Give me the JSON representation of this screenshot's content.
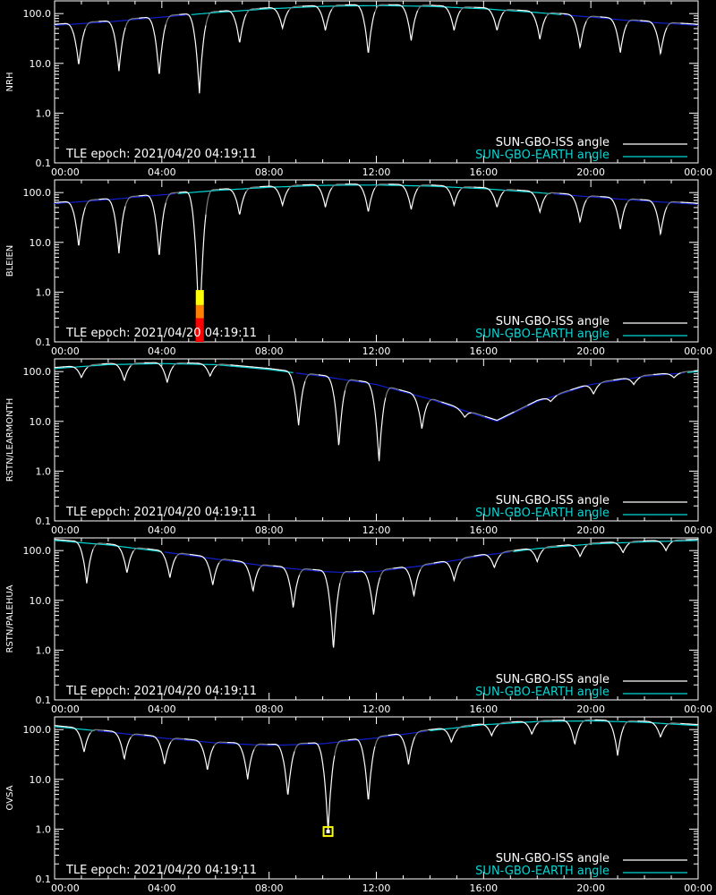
{
  "colors": {
    "background": "#000000",
    "axis": "#ffffff",
    "iss_sunlit": "#ffffff",
    "iss_shadow": "#808080",
    "earth_above_horizon": "#00d8d8",
    "earth_below_horizon": "#1020d0",
    "marker_yellow": "#ffff00",
    "marker_orange": "#ff8000",
    "marker_red": "#ff0000"
  },
  "x_tick_labels": [
    "00:00",
    "04:00",
    "08:00",
    "12:00",
    "16:00",
    "20:00",
    "00:00"
  ],
  "y_tick_labels": [
    "100.0",
    "10.0",
    "1.0",
    "0.1"
  ],
  "legend": {
    "iss": "SUN-GBO-ISS angle",
    "earth": "SUN-GBO-EARTH angle"
  },
  "epoch_text": "TLE epoch: 2021/04/20 04:19:11",
  "chart_data": [
    {
      "type": "line",
      "station": "NRH",
      "ylabel": "NRH",
      "xlim": [
        0,
        24
      ],
      "ylim": [
        0.1,
        180
      ],
      "yscale": "log",
      "earth_angle": {
        "x": [
          0,
          2,
          4,
          6,
          8,
          10,
          12,
          14,
          16,
          18,
          20,
          22,
          24
        ],
        "y": [
          58,
          68,
          85,
          105,
          125,
          140,
          145,
          140,
          125,
          105,
          85,
          68,
          58
        ]
      },
      "iss_dips": {
        "time": [
          0.9,
          2.4,
          3.9,
          5.4,
          6.9,
          8.5,
          10.1,
          11.7,
          13.3,
          14.9,
          16.5,
          18.1,
          19.6,
          21.1,
          22.6
        ],
        "min": [
          9,
          7,
          5.5,
          2.5,
          25,
          50,
          45,
          15,
          28,
          45,
          45,
          30,
          20,
          16,
          15
        ]
      },
      "markers": []
    },
    {
      "type": "line",
      "station": "BLEIEN",
      "ylabel": "BLEIEN",
      "xlim": [
        0,
        24
      ],
      "ylim": [
        0.1,
        180
      ],
      "yscale": "log",
      "earth_angle": {
        "x": [
          0,
          2,
          4,
          6,
          8,
          10,
          12,
          14,
          16,
          18,
          20,
          22,
          24
        ],
        "y": [
          60,
          72,
          90,
          110,
          128,
          140,
          142,
          135,
          120,
          100,
          82,
          68,
          58
        ]
      },
      "iss_dips": {
        "time": [
          0.9,
          2.4,
          3.9,
          5.4,
          6.9,
          8.5,
          10.1,
          11.7,
          13.3,
          14.9,
          16.5,
          18.1,
          19.6,
          21.1,
          22.6
        ],
        "min": [
          8,
          6,
          5,
          0.1,
          35,
          55,
          50,
          40,
          45,
          55,
          50,
          40,
          25,
          18,
          14
        ]
      },
      "markers": [
        {
          "time": 5.4,
          "y_from": 0.1,
          "y_to": 0.2,
          "color": "marker_red"
        },
        {
          "time": 5.4,
          "y_from": 0.2,
          "y_to": 0.3,
          "color": "marker_red"
        },
        {
          "time": 5.4,
          "y_from": 0.3,
          "y_to": 0.55,
          "color": "marker_orange"
        },
        {
          "time": 5.4,
          "y_from": 0.55,
          "y_to": 1.1,
          "color": "marker_yellow"
        }
      ]
    },
    {
      "type": "line",
      "station": "RSTN/LEARMONTH",
      "ylabel": "RSTN/LEARMONTH",
      "xlim": [
        0,
        24
      ],
      "ylim": [
        0.1,
        180
      ],
      "yscale": "log",
      "earth_angle": {
        "x": [
          0,
          2,
          4,
          6,
          8,
          10,
          12,
          14,
          15.5,
          16.5,
          18,
          20,
          22,
          24
        ],
        "y": [
          115,
          138,
          145,
          138,
          110,
          80,
          55,
          28,
          15,
          10,
          25,
          55,
          80,
          100
        ]
      },
      "iss_dips": {
        "time": [
          1.0,
          2.6,
          4.2,
          5.8,
          9.1,
          10.6,
          12.1,
          13.7,
          15.3,
          16.9,
          18.5,
          20.1,
          21.6,
          23.1
        ],
        "min": [
          75,
          65,
          60,
          80,
          8,
          3,
          1.5,
          7,
          12,
          18,
          25,
          35,
          55,
          75
        ]
      },
      "markers": []
    },
    {
      "type": "line",
      "station": "RSTN/PALEHUA",
      "ylabel": "RSTN/PALEHUA",
      "xlim": [
        0,
        24
      ],
      "ylim": [
        0.1,
        180
      ],
      "yscale": "log",
      "earth_angle": {
        "x": [
          0,
          2,
          4,
          6,
          8,
          10,
          11,
          12,
          14,
          16,
          18,
          20,
          22,
          24
        ],
        "y": [
          160,
          130,
          95,
          68,
          48,
          38,
          36,
          38,
          52,
          80,
          110,
          135,
          150,
          160
        ]
      },
      "iss_dips": {
        "time": [
          1.2,
          2.7,
          4.3,
          5.9,
          7.4,
          8.9,
          10.4,
          11.9,
          13.4,
          14.9,
          16.4,
          18.0,
          19.6,
          21.2,
          22.8
        ],
        "min": [
          22,
          35,
          28,
          20,
          15,
          7,
          1.0,
          5,
          12,
          25,
          45,
          60,
          75,
          90,
          100
        ]
      },
      "markers": []
    },
    {
      "type": "line",
      "station": "OVSA",
      "ylabel": "OVSA",
      "xlim": [
        0,
        24
      ],
      "ylim": [
        0.1,
        180
      ],
      "yscale": "log",
      "earth_angle": {
        "x": [
          0,
          2,
          4,
          6,
          8,
          10,
          12,
          14,
          16,
          18,
          20,
          22,
          24
        ],
        "y": [
          115,
          90,
          68,
          54,
          48,
          52,
          68,
          95,
          125,
          145,
          150,
          140,
          120
        ]
      },
      "iss_dips": {
        "time": [
          1.1,
          2.6,
          4.1,
          5.7,
          7.2,
          8.7,
          10.2,
          11.7,
          13.2,
          14.8,
          16.3,
          17.8,
          19.4,
          21.0,
          22.6
        ],
        "min": [
          35,
          25,
          20,
          15,
          10,
          4.5,
          0.9,
          3.5,
          20,
          55,
          75,
          80,
          50,
          30,
          70
        ]
      },
      "markers": [
        {
          "time": 10.2,
          "y_from": 0.85,
          "y_to": 1.1,
          "color": "marker_yellow",
          "style": "box"
        }
      ]
    }
  ]
}
